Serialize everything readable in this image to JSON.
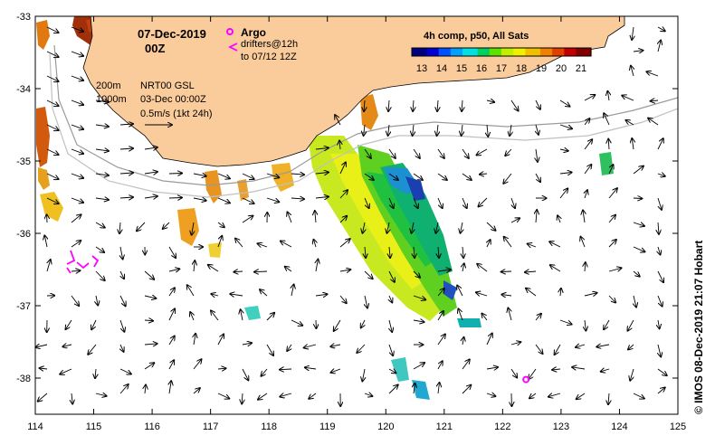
{
  "map": {
    "date": "07-Dec-2019",
    "hour": "00Z",
    "argo_label": "Argo",
    "drifter_label_1": "drifters@12h",
    "drifter_label_2": "to 07/12 12Z",
    "isobath_200": "200m",
    "isobath_1000": "1000m",
    "velocity_source": "NRT00 GSL",
    "velocity_date": "03-Dec 00:00Z",
    "scale_label": "0.5m/s (1kt 24h)",
    "colorbar_title": "4h comp, p50, All Sats",
    "credit": "© IMOS 08-Dec-2019 21:07 Hobart",
    "colors": {
      "land": "#fbcc9b",
      "argo": "#ff00ff",
      "drifter": "#ff00ff"
    }
  },
  "colorbar": {
    "ticks": [
      "13",
      "14",
      "15",
      "16",
      "17",
      "18",
      "19",
      "20",
      "21"
    ],
    "min": 12.5,
    "max": 21.5,
    "colors": [
      "#000080",
      "#0000d0",
      "#0050ff",
      "#00a0ff",
      "#00e0e0",
      "#00d060",
      "#60e000",
      "#c0f000",
      "#f0f000",
      "#f0c000",
      "#f08000",
      "#e04000",
      "#c00000",
      "#800000"
    ]
  },
  "axes": {
    "lon_ticks": [
      "114",
      "115",
      "116",
      "117",
      "118",
      "119",
      "120",
      "121",
      "122",
      "123",
      "124",
      "125"
    ],
    "lat_ticks": [
      "-33",
      "-34",
      "-35",
      "-36",
      "-37",
      "-38"
    ],
    "lon_range": [
      114,
      125
    ],
    "lat_range": [
      -38.5,
      -33
    ]
  },
  "argo_float": {
    "lon": 122.4,
    "lat": -38.02
  }
}
